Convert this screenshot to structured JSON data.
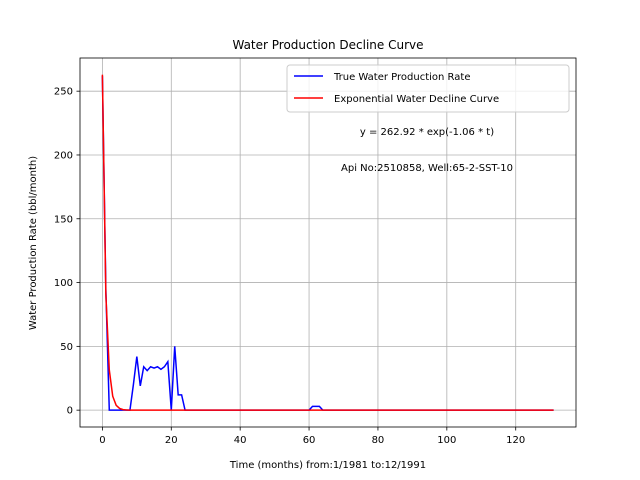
{
  "chart_data": {
    "type": "line",
    "title": "Water Production Decline Curve",
    "xlabel": "Time (months) from:1/1981 to:12/1991",
    "ylabel": "Water Production Rate (bbl/month)",
    "xlim": [
      -6.5,
      137.5
    ],
    "ylim": [
      -13.2,
      276
    ],
    "xticks": [
      0,
      20,
      40,
      60,
      80,
      100,
      120
    ],
    "yticks": [
      0,
      50,
      100,
      150,
      200,
      250
    ],
    "grid": true,
    "legend_position": "top-right",
    "annotations": [
      "y = 262.92 * exp(-1.06 * t)",
      "Api No:2510858, Well:65-2-SST-10"
    ],
    "series": [
      {
        "name": "True Water Production Rate",
        "color": "#0000ff",
        "points": [
          [
            0,
            262
          ],
          [
            1,
            95
          ],
          [
            2,
            0
          ],
          [
            3,
            0
          ],
          [
            4,
            0
          ],
          [
            5,
            0
          ],
          [
            6,
            0
          ],
          [
            7,
            0
          ],
          [
            8,
            0
          ],
          [
            9,
            20
          ],
          [
            10,
            42
          ],
          [
            11,
            19
          ],
          [
            12,
            34
          ],
          [
            13,
            31
          ],
          [
            14,
            34
          ],
          [
            15,
            33
          ],
          [
            16,
            34
          ],
          [
            17,
            32
          ],
          [
            18,
            34
          ],
          [
            19,
            38
          ],
          [
            20,
            0
          ],
          [
            21,
            50
          ],
          [
            22,
            12
          ],
          [
            23,
            12
          ],
          [
            24,
            0
          ],
          [
            30,
            0
          ],
          [
            40,
            0
          ],
          [
            50,
            0
          ],
          [
            60,
            0
          ],
          [
            61,
            3
          ],
          [
            62,
            3
          ],
          [
            63,
            3
          ],
          [
            64,
            0
          ],
          [
            70,
            0
          ],
          [
            80,
            0
          ],
          [
            90,
            0
          ],
          [
            100,
            0
          ],
          [
            110,
            0
          ],
          [
            120,
            0
          ],
          [
            131,
            0
          ]
        ]
      },
      {
        "name": "Exponential Water Decline Curve",
        "color": "#ff0000",
        "model": {
          "a": 262.92,
          "b": -1.06
        },
        "x_range": [
          0,
          131
        ]
      }
    ]
  }
}
